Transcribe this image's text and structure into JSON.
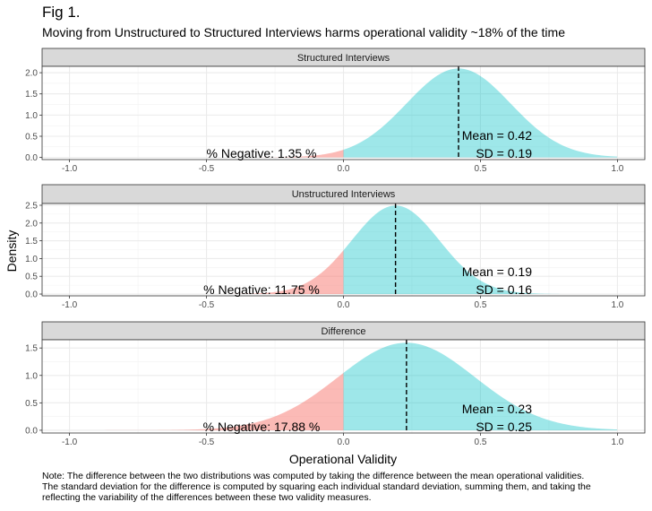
{
  "figure": {
    "label": "Fig 1.",
    "title": "Moving from Unstructured to Structured Interviews harms operational validity ~18% of the time",
    "note_lines": [
      "Note: The difference between the two distributions was computed by taking the difference between the mean operational validities.",
      "The standard deviation for the difference is computed by squaring each individual standard deviation, summing them, and taking the",
      "reflecting the variability of the differences between these two validity measures."
    ]
  },
  "chart_data": {
    "type": "area",
    "xlabel": "Operational Validity",
    "ylabel": "Density",
    "xlim": [
      -1.1,
      1.1
    ],
    "x_ticks": [
      "-1.0",
      "-0.5",
      "0.0",
      "0.5",
      "1.0"
    ],
    "x_tick_values": [
      -1.0,
      -0.5,
      0.0,
      0.5,
      1.0
    ],
    "grid": true,
    "fill_colors": {
      "negative": "#F8766D",
      "positive": "#00BFC4"
    },
    "panels": [
      {
        "strip": "Structured Interviews",
        "mean": 0.42,
        "sd": 0.19,
        "mean_label": "Mean =  0.42",
        "sd_label": "SD =  0.19",
        "neg_label": "% Negative:  1.35 %",
        "ylim": [
          -0.05,
          2.15
        ],
        "y_ticks": [
          "0.0",
          "0.5",
          "1.0",
          "1.5",
          "2.0"
        ],
        "y_tick_values": [
          0.0,
          0.5,
          1.0,
          1.5,
          2.0
        ]
      },
      {
        "strip": "Unstructured Interviews",
        "mean": 0.19,
        "sd": 0.16,
        "mean_label": "Mean =  0.19",
        "sd_label": "SD =  0.16",
        "neg_label": "% Negative:  11.75 %",
        "ylim": [
          -0.05,
          2.55
        ],
        "y_ticks": [
          "0.0",
          "0.5",
          "1.0",
          "1.5",
          "2.0",
          "2.5"
        ],
        "y_tick_values": [
          0.0,
          0.5,
          1.0,
          1.5,
          2.0,
          2.5
        ]
      },
      {
        "strip": "Difference",
        "mean": 0.23,
        "sd": 0.25,
        "mean_label": "Mean =  0.23",
        "sd_label": "SD =  0.25",
        "neg_label": "% Negative:  17.88 %",
        "ylim": [
          -0.05,
          1.65
        ],
        "y_ticks": [
          "0.0",
          "0.5",
          "1.0",
          "1.5"
        ],
        "y_tick_values": [
          0.0,
          0.5,
          1.0,
          1.5
        ]
      }
    ]
  }
}
